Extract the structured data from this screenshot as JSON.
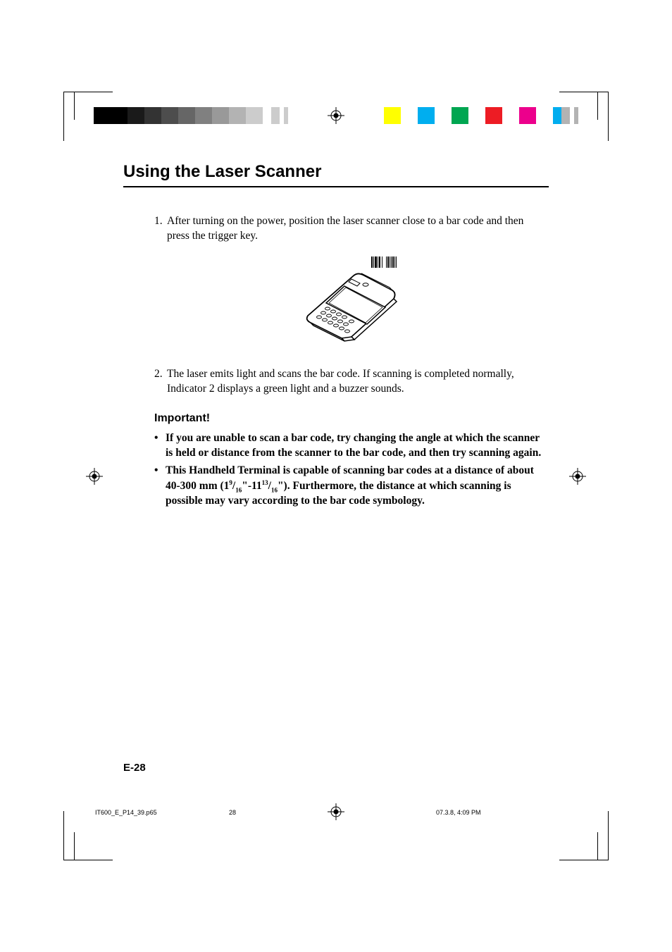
{
  "colorbars": {
    "left": [
      "#000000",
      "#000000",
      "#1a1a1a",
      "#333333",
      "#4d4d4d",
      "#666666",
      "#808080",
      "#999999",
      "#b3b3b3",
      "#cccccc",
      "#ffffff",
      "#cccccc",
      "#ffffff",
      "#cccccc"
    ],
    "right": [
      "#ffff00",
      "#ffffff",
      "#00aeef",
      "#ffffff",
      "#00a651",
      "#ffffff",
      "#ed1c24",
      "#ffffff",
      "#ec008c",
      "#ffffff",
      "#00adef",
      "#b3b3b3",
      "#ffffff",
      "#b3b3b3"
    ]
  },
  "section_title": "Using the Laser Scanner",
  "steps": {
    "s1_num": "1.",
    "s1_text": "After turning on the power, position the laser scanner close to a bar code and then press the trigger key.",
    "s2_num": "2.",
    "s2_text": "The laser emits light and scans the bar code.  If scanning is completed normally, Indicator 2 displays a green light and a buzzer sounds."
  },
  "important_heading": "Important!",
  "bullets": {
    "b1": "If you are unable to scan a bar code, try changing the angle at which the scanner is held or distance from the scanner to the bar code, and then try scanning again.",
    "b2_pre": "This Handheld Terminal is capable of scanning bar codes at a distance of about 40-300 mm (1",
    "b2_f1n": "9",
    "b2_f1d": "16",
    "b2_mid1": "\"-11",
    "b2_f2n": "13",
    "b2_f2d": "16",
    "b2_post": "\").  Furthermore, the distance at which scanning is possible may vary according to the bar code symbology."
  },
  "page_number": "E-28",
  "footer": {
    "filename": "IT600_E_P14_39.p65",
    "page": "28",
    "datetime": "07.3.8, 4:09 PM"
  }
}
